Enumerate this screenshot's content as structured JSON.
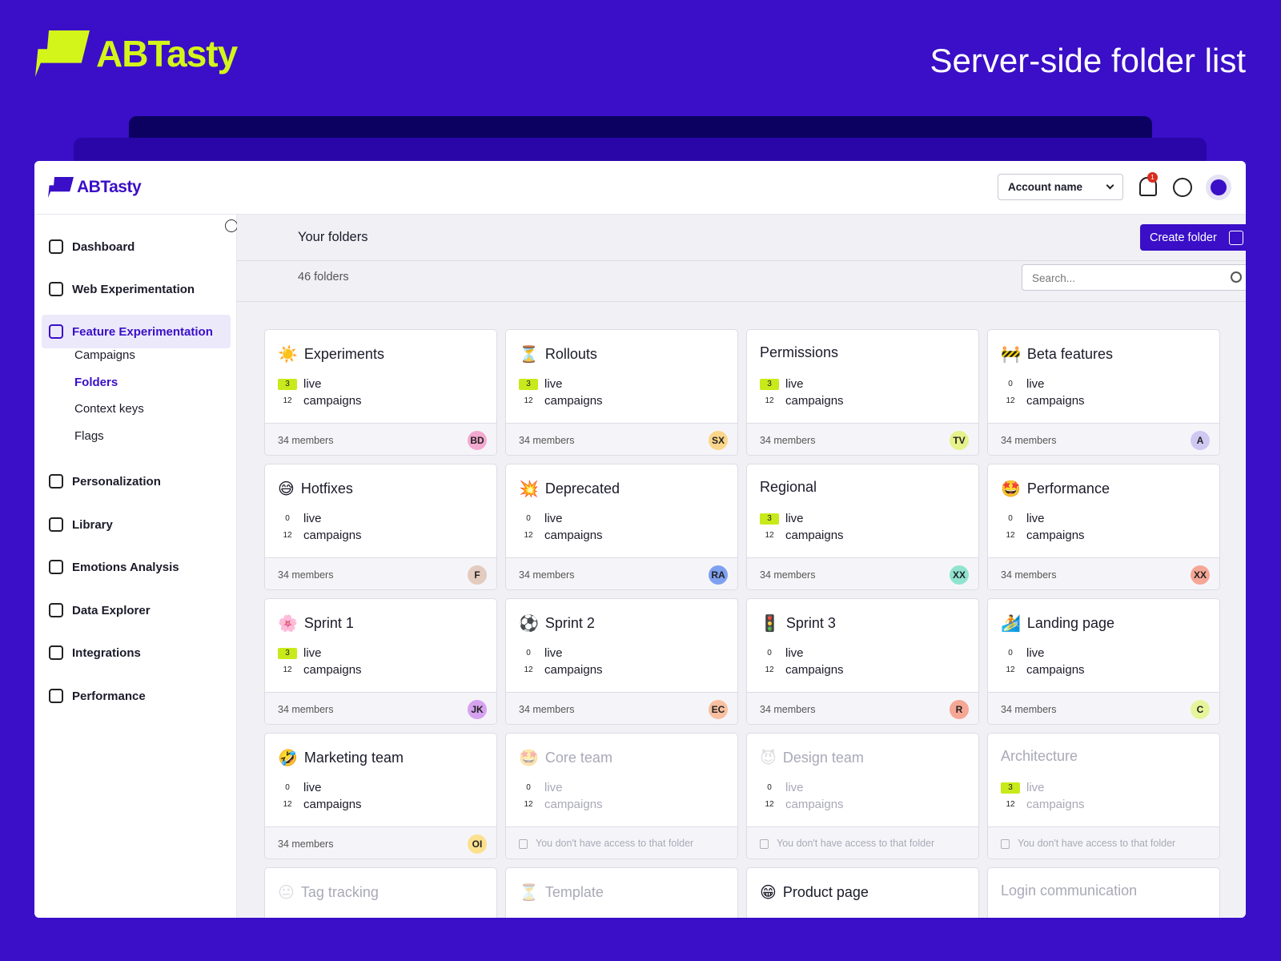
{
  "header": {
    "brand": "ABTasty",
    "title": "Server-side folder list"
  },
  "app": {
    "brand": "ABTasty",
    "account": "Account name",
    "notifications": 1,
    "nav": [
      {
        "label": "Dashboard"
      },
      {
        "label": "Web Experimentation"
      },
      {
        "label": "Feature Experimentation",
        "active": true,
        "children": [
          "Campaigns",
          "Folders",
          "Context keys",
          "Flags"
        ],
        "active_child": 1
      },
      {
        "label": "Personalization"
      },
      {
        "label": "Library"
      },
      {
        "label": "Emotions Analysis"
      },
      {
        "label": "Data Explorer"
      },
      {
        "label": "Integrations"
      },
      {
        "label": "Performance"
      }
    ],
    "page_title": "Your folders",
    "create_button": "Create folder",
    "count": "46 folders",
    "search_placeholder": "Search...",
    "labels": {
      "live": "live",
      "campaigns": "campaigns",
      "locked": "You don't have access to that folder"
    },
    "folders": [
      {
        "icon": "☀️",
        "name": "Experiments",
        "live": 3,
        "campaigns": 12,
        "members": "34 members",
        "owner": "BD",
        "owner_color": "#f4a9d0"
      },
      {
        "icon": "⏳",
        "name": "Rollouts",
        "live": 3,
        "campaigns": 12,
        "members": "34 members",
        "owner": "SX",
        "owner_color": "#fbd68a"
      },
      {
        "name": "Permissions",
        "live": 3,
        "campaigns": 12,
        "members": "34 members",
        "owner": "TV",
        "owner_color": "#e6f28a"
      },
      {
        "icon": "🚧",
        "name": "Beta features",
        "live": 0,
        "campaigns": 12,
        "members": "34 members",
        "owner": "A",
        "owner_color": "#cfc8f2"
      },
      {
        "icon": "😅",
        "name": "Hotfixes",
        "live": 0,
        "campaigns": 12,
        "members": "34 members",
        "owner": "F",
        "owner_color": "#e3cbbf"
      },
      {
        "icon": "💥",
        "name": "Deprecated",
        "live": 0,
        "campaigns": 12,
        "members": "34 members",
        "owner": "RA",
        "owner_color": "#7fa0f0"
      },
      {
        "name": "Regional",
        "live": 3,
        "campaigns": 12,
        "members": "34 members",
        "owner": "XX",
        "owner_color": "#8fe3d0"
      },
      {
        "icon": "🤩",
        "name": "Performance",
        "live": 0,
        "campaigns": 12,
        "members": "34 members",
        "owner": "XX",
        "owner_color": "#f6a695"
      },
      {
        "icon": "🌸",
        "name": "Sprint 1",
        "live": 3,
        "campaigns": 12,
        "members": "34 members",
        "owner": "JK",
        "owner_color": "#d6a2f0"
      },
      {
        "icon": "⚽",
        "name": "Sprint 2",
        "live": 0,
        "campaigns": 12,
        "members": "34 members",
        "owner": "EC",
        "owner_color": "#f8bfa0"
      },
      {
        "icon": "🚦",
        "name": "Sprint 3",
        "live": 0,
        "campaigns": 12,
        "members": "34 members",
        "owner": "R",
        "owner_color": "#f6a695"
      },
      {
        "icon": "🏄",
        "name": "Landing page",
        "live": 0,
        "campaigns": 12,
        "members": "34 members",
        "owner": "C",
        "owner_color": "#e6f59a"
      },
      {
        "icon": "🤣",
        "name": "Marketing team",
        "live": 0,
        "campaigns": 12,
        "members": "34 members",
        "owner": "OI",
        "owner_color": "#fbe08f"
      },
      {
        "icon": "🤩",
        "name": "Core team",
        "live": 0,
        "campaigns": 12,
        "locked": true
      },
      {
        "icon": "😈",
        "name": "Design team",
        "live": 0,
        "campaigns": 12,
        "locked": true
      },
      {
        "name": "Architecture",
        "live": 3,
        "campaigns": 12,
        "locked": true
      },
      {
        "icon": "😐",
        "name": "Tag tracking",
        "disabled": true
      },
      {
        "icon": "⏳",
        "name": "Template",
        "disabled": true
      },
      {
        "icon": "😁",
        "name": "Product page"
      },
      {
        "name": "Login communication",
        "disabled": true
      }
    ]
  }
}
